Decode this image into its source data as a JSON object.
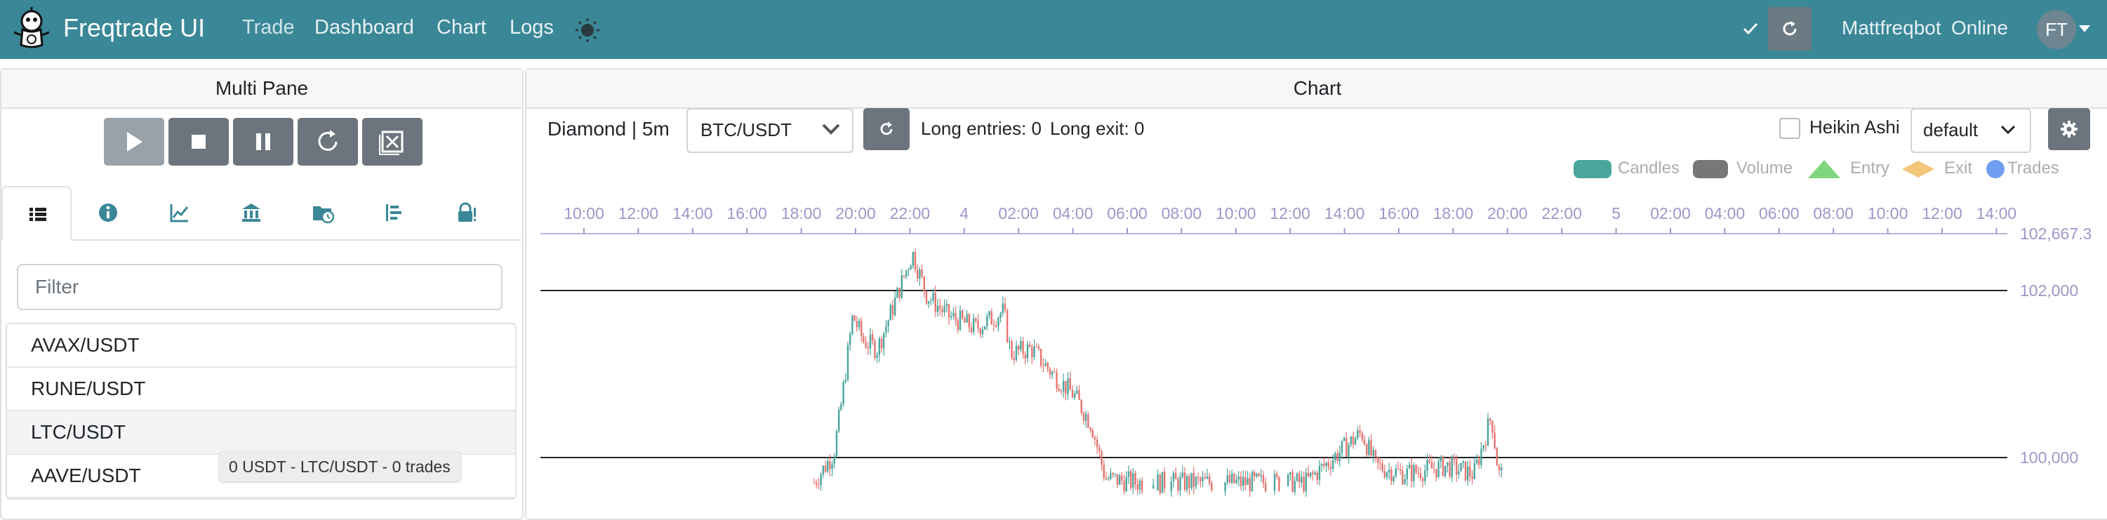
{
  "navbar": {
    "brand": "Freqtrade UI",
    "links": [
      "Trade",
      "Dashboard",
      "Chart",
      "Logs"
    ],
    "bot_name": "Mattfreqbot",
    "bot_status": "Online",
    "avatar_initials": "FT",
    "color": "#3a8797"
  },
  "left_pane": {
    "title": "Multi Pane",
    "filter_placeholder": "Filter",
    "pairs": [
      "AVAX/USDT",
      "RUNE/USDT",
      "LTC/USDT",
      "AAVE/USDT"
    ],
    "tooltip": "0 USDT - LTC/USDT - 0 trades"
  },
  "chart_pane": {
    "title": "Chart",
    "strategy_label": "Diamond | 5m",
    "selected_pair": "BTC/USDT",
    "long_entries": "Long entries: 0",
    "long_exit": "Long exit: 0",
    "heikin_ashi_label": "Heikin Ashi",
    "plot_config": "default",
    "legend": [
      {
        "label": "Candles",
        "color": "#4aa59c"
      },
      {
        "label": "Volume",
        "color": "#777777"
      },
      {
        "label": "Entry",
        "color": "#7fd67f"
      },
      {
        "label": "Exit",
        "color": "#f3c77a"
      },
      {
        "label": "Trades",
        "color": "#6f9ef0"
      }
    ]
  },
  "chart_data": {
    "type": "candlestick",
    "x_ticks": [
      "10:00",
      "12:00",
      "14:00",
      "16:00",
      "18:00",
      "20:00",
      "22:00",
      "4",
      "02:00",
      "04:00",
      "06:00",
      "08:00",
      "10:00",
      "12:00",
      "14:00",
      "16:00",
      "18:00",
      "20:00",
      "22:00",
      "5",
      "02:00",
      "04:00",
      "06:00",
      "08:00",
      "10:00",
      "12:00",
      "14:00"
    ],
    "y_ticks": [
      "102,667.3",
      "102,000",
      "100,000"
    ],
    "ylim": [
      99700,
      102667.3
    ],
    "marker_lines": [
      102000,
      100000
    ],
    "series_price_path": [
      {
        "x": 1160,
        "y": 99700
      },
      {
        "x": 1188,
        "y": 100050
      },
      {
        "x": 1198,
        "y": 100600
      },
      {
        "x": 1215,
        "y": 101700
      },
      {
        "x": 1230,
        "y": 101400
      },
      {
        "x": 1250,
        "y": 101300
      },
      {
        "x": 1270,
        "y": 101750
      },
      {
        "x": 1300,
        "y": 102450
      },
      {
        "x": 1320,
        "y": 101950
      },
      {
        "x": 1350,
        "y": 101700
      },
      {
        "x": 1390,
        "y": 101550
      },
      {
        "x": 1430,
        "y": 101750
      },
      {
        "x": 1440,
        "y": 101250
      },
      {
        "x": 1470,
        "y": 101300
      },
      {
        "x": 1500,
        "y": 101000
      },
      {
        "x": 1530,
        "y": 100750
      },
      {
        "x": 1555,
        "y": 100400
      },
      {
        "x": 1575,
        "y": 99750
      },
      {
        "x": 1620,
        "y": 99700
      },
      {
        "x": 1860,
        "y": 99700
      },
      {
        "x": 1940,
        "y": 100300
      },
      {
        "x": 1960,
        "y": 99900
      },
      {
        "x": 2000,
        "y": 99800
      },
      {
        "x": 2060,
        "y": 99900
      },
      {
        "x": 2100,
        "y": 99800
      },
      {
        "x": 2125,
        "y": 100500
      },
      {
        "x": 2135,
        "y": 99800
      }
    ]
  }
}
